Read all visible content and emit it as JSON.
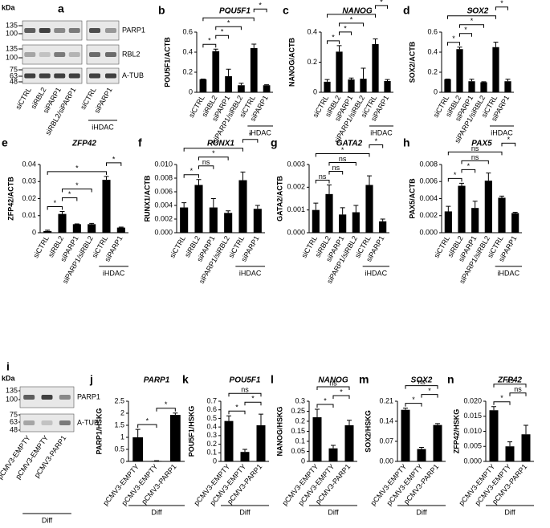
{
  "blots": [
    {
      "panel": "a",
      "unit": "kDa",
      "markers": [
        135,
        100,
        135,
        100,
        75,
        63,
        48
      ],
      "proteins": [
        "PARP1",
        "RBL2",
        "A-TUB"
      ],
      "lanes": [
        "siCTRL",
        "siRBL2",
        "siPARP1",
        "siRBL2/siPARP1",
        "siCTRL",
        "siPARP1"
      ],
      "group": {
        "label": "iHDAC",
        "between": [
          4,
          5
        ]
      }
    },
    {
      "panel": "i",
      "unit": "kDa",
      "markers": [
        135,
        100,
        75,
        63,
        48
      ],
      "proteins": [
        "PARP1",
        "A-TUB"
      ],
      "lanes": [
        "pCMV3-EMPTY",
        "pCMV3-EMPTY",
        "pCMV3-PARP1"
      ],
      "group": {
        "label": "Diff",
        "between": [
          0,
          2
        ]
      }
    }
  ],
  "chart_data": [
    {
      "type": "bar",
      "panel": "b",
      "title": "POU5F1",
      "ylabel": "POU5F1/ACTB",
      "color": "#000000",
      "categories": [
        "siCTRL",
        "siRBL2",
        "siPARP1",
        "siPARP1/siRBL2",
        "siCTRL",
        "siPARP1"
      ],
      "values": [
        0.13,
        0.41,
        0.16,
        0.07,
        0.44,
        0.07
      ],
      "errors": [
        0.002,
        0.02,
        0.07,
        0.02,
        0.04,
        0.005
      ],
      "ylim": [
        0,
        0.6
      ],
      "yticks": [
        0,
        0.2,
        0.4,
        0.6
      ],
      "significance": [
        {
          "between": [
            0,
            1
          ],
          "label": "*"
        },
        {
          "between": [
            1,
            2
          ],
          "label": "*"
        },
        {
          "between": [
            1,
            3
          ],
          "label": "*"
        },
        {
          "between": [
            0,
            4
          ],
          "label": "*"
        },
        {
          "between": [
            4,
            5
          ],
          "label": "*"
        }
      ],
      "group": {
        "label": "iHDAC",
        "between": [
          4,
          5
        ]
      }
    },
    {
      "type": "bar",
      "panel": "c",
      "title": "NANOG",
      "ylabel": "NANOG/ACTB",
      "color": "#000000",
      "categories": [
        "siCTRL",
        "siRBL2",
        "siPARP1",
        "siPARP1/siRBL2",
        "siCTRL",
        "siPARP1"
      ],
      "values": [
        0.07,
        0.27,
        0.085,
        0.09,
        0.32,
        0.075
      ],
      "errors": [
        0.015,
        0.04,
        0.01,
        0.07,
        0.035,
        0.01
      ],
      "ylim": [
        0,
        0.4
      ],
      "yticks": [
        0,
        0.2,
        0.4
      ],
      "significance": [
        {
          "between": [
            0,
            1
          ],
          "label": "*"
        },
        {
          "between": [
            1,
            2
          ],
          "label": "*"
        },
        {
          "between": [
            1,
            3
          ],
          "label": "*"
        },
        {
          "between": [
            0,
            4
          ],
          "label": "*"
        },
        {
          "between": [
            4,
            5
          ],
          "label": "*"
        }
      ],
      "group": {
        "label": "iHDAC",
        "between": [
          4,
          5
        ]
      }
    },
    {
      "type": "bar",
      "panel": "d",
      "title": "SOX2",
      "ylabel": "SOX2/ACTB",
      "color": "#000000",
      "categories": [
        "siCTRL",
        "siRBL2",
        "siPARP1",
        "siPARP1/siRBL2",
        "siCTRL",
        "siPARP1"
      ],
      "values": [
        0.13,
        0.43,
        0.11,
        0.1,
        0.45,
        0.11
      ],
      "errors": [
        0.002,
        0.02,
        0.02,
        0.005,
        0.05,
        0.02
      ],
      "ylim": [
        0,
        0.6
      ],
      "yticks": [
        0,
        0.2,
        0.4,
        0.6
      ],
      "significance": [
        {
          "between": [
            0,
            1
          ],
          "label": "*"
        },
        {
          "between": [
            1,
            2
          ],
          "label": "*"
        },
        {
          "between": [
            1,
            3
          ],
          "label": "*"
        },
        {
          "between": [
            0,
            4
          ],
          "label": "*"
        },
        {
          "between": [
            4,
            5
          ],
          "label": "*"
        }
      ],
      "group": {
        "label": "iHDAC",
        "between": [
          4,
          5
        ]
      }
    },
    {
      "type": "bar",
      "panel": "e",
      "title": "ZFP42",
      "ylabel": "ZFP42/ACTB",
      "color": "#000000",
      "categories": [
        "siCTRL",
        "siRBL2",
        "siPARP1",
        "siPARP1/siRBL2",
        "siCTRL",
        "siPARP1"
      ],
      "values": [
        0.001,
        0.011,
        0.005,
        0.005,
        0.031,
        0.003
      ],
      "errors": [
        0.0005,
        0.0015,
        0.0002,
        0.0005,
        0.002,
        0.0003
      ],
      "ylim": [
        0,
        0.04
      ],
      "yticks": [
        0,
        0.01,
        0.02,
        0.03,
        0.04
      ],
      "significance": [
        {
          "between": [
            0,
            1
          ],
          "label": "*"
        },
        {
          "between": [
            1,
            2
          ],
          "label": "*"
        },
        {
          "between": [
            1,
            3
          ],
          "label": "*"
        },
        {
          "between": [
            0,
            4
          ],
          "label": "*"
        },
        {
          "between": [
            4,
            5
          ],
          "label": "*"
        }
      ],
      "group": {
        "label": "iHDAC",
        "between": [
          4,
          5
        ]
      }
    },
    {
      "type": "bar",
      "panel": "f",
      "title": "RUNX1",
      "ylabel": "RUNX1/ACTB",
      "color": "#000000",
      "categories": [
        "siCTRL",
        "siRBL2",
        "siPARP1",
        "siPARP1/siRBL2",
        "siCTRL",
        "siPARP1"
      ],
      "values": [
        0.0037,
        0.007,
        0.0037,
        0.0029,
        0.0077,
        0.0035
      ],
      "errors": [
        0.0007,
        0.0008,
        0.0013,
        0.0003,
        0.0012,
        0.0005
      ],
      "ylim": [
        0,
        0.01
      ],
      "yticks": [
        {
          "value": 0,
          "label": "0.000"
        },
        {
          "value": 0.002,
          "label": "0.002"
        },
        {
          "value": 0.004,
          "label": "0.004"
        },
        {
          "value": 0.006,
          "label": "0.006"
        },
        {
          "value": 0.008,
          "label": "0.008"
        },
        {
          "value": 0.01,
          "label": "0.010"
        }
      ],
      "significance": [
        {
          "between": [
            0,
            1
          ],
          "label": "*"
        },
        {
          "between": [
            1,
            2
          ],
          "label": "ns"
        },
        {
          "between": [
            1,
            3
          ],
          "label": "*"
        },
        {
          "between": [
            0,
            4
          ],
          "label": "*"
        },
        {
          "between": [
            4,
            5
          ],
          "label": "*"
        }
      ],
      "group": {
        "label": "iHDAC",
        "between": [
          4,
          5
        ]
      }
    },
    {
      "type": "bar",
      "panel": "g",
      "title": "GATA2",
      "ylabel": "GATA2/ACTB",
      "color": "#000000",
      "categories": [
        "siCTRL",
        "siRBL2",
        "siPARP1",
        "siPARP1/siRBL2",
        "siCTRL",
        "siPARP1"
      ],
      "values": [
        0.001,
        0.0017,
        0.0008,
        0.0009,
        0.0021,
        0.0005
      ],
      "errors": [
        0.0003,
        0.0004,
        0.0003,
        0.0003,
        0.0004,
        0.0001
      ],
      "ylim": [
        0,
        0.003
      ],
      "yticks": [
        {
          "value": 0,
          "label": "0.000"
        },
        {
          "value": 0.001,
          "label": "0.001"
        },
        {
          "value": 0.002,
          "label": "0.002"
        },
        {
          "value": 0.003,
          "label": "0.003"
        }
      ],
      "significance": [
        {
          "between": [
            0,
            1
          ],
          "label": "ns"
        },
        {
          "between": [
            1,
            2
          ],
          "label": "ns"
        },
        {
          "between": [
            1,
            3
          ],
          "label": "ns"
        },
        {
          "between": [
            0,
            4
          ],
          "label": "*"
        },
        {
          "between": [
            4,
            5
          ],
          "label": "*"
        }
      ],
      "group": {
        "label": "iHDAC",
        "between": [
          4,
          5
        ]
      }
    },
    {
      "type": "bar",
      "panel": "h",
      "title": "PAX5",
      "ylabel": "PAX5/ACTB",
      "color": "#000000",
      "categories": [
        "siCTRL",
        "siRBL2",
        "siPARP1",
        "siPARP1/siRBL2",
        "siCTRL",
        "siPARP1"
      ],
      "values": [
        0.0025,
        0.0055,
        0.0029,
        0.0061,
        0.0041,
        0.0023
      ],
      "errors": [
        0.0006,
        0.0003,
        0.0008,
        0.0009,
        0.0002,
        0.0001
      ],
      "ylim": [
        0,
        0.008
      ],
      "yticks": [
        {
          "value": 0,
          "label": "0.000"
        },
        {
          "value": 0.002,
          "label": "0.002"
        },
        {
          "value": 0.004,
          "label": "0.004"
        },
        {
          "value": 0.006,
          "label": "0.006"
        },
        {
          "value": 0.008,
          "label": "0.008"
        }
      ],
      "significance": [
        {
          "between": [
            0,
            1
          ],
          "label": "*"
        },
        {
          "between": [
            1,
            2
          ],
          "label": "*"
        },
        {
          "between": [
            1,
            3
          ],
          "label": "ns"
        },
        {
          "between": [
            0,
            4
          ],
          "label": "ns"
        },
        {
          "between": [
            4,
            5
          ],
          "label": "*"
        }
      ],
      "group": {
        "label": "iHDAC",
        "between": [
          4,
          5
        ]
      }
    },
    {
      "type": "bar",
      "panel": "j",
      "title": "PARP1",
      "ylabel": "PARP1/HSKG",
      "color": "#000000",
      "categories": [
        "pCMV3-EMPTY",
        "pCMV3-EMPTY",
        "pCMV3-PARP1"
      ],
      "values": [
        1.0,
        0.02,
        1.93
      ],
      "errors": [
        0.33,
        0.01,
        0.08
      ],
      "ylim": [
        0,
        2.5
      ],
      "yticks": [
        0,
        0.5,
        1,
        1.5,
        2,
        2.5
      ],
      "significance": [
        {
          "between": [
            0,
            1
          ],
          "label": "*"
        },
        {
          "between": [
            1,
            2
          ],
          "label": "*"
        }
      ],
      "group": {
        "label": "Diff",
        "between": [
          0,
          2
        ]
      }
    },
    {
      "type": "bar",
      "panel": "k",
      "title": "POU5F1",
      "ylabel": "POU5F1/HSKG",
      "color": "#000000",
      "categories": [
        "pCMV3-EMPTY",
        "pCMV3-EMPTY",
        "pCMV3-PARP1"
      ],
      "values": [
        0.47,
        0.11,
        0.42
      ],
      "errors": [
        0.06,
        0.03,
        0.13
      ],
      "ylim": [
        0,
        0.7
      ],
      "yticks": [
        0,
        0.1,
        0.2,
        0.3,
        0.4,
        0.5,
        0.6,
        0.7
      ],
      "significance": [
        {
          "between": [
            0,
            1
          ],
          "label": "*"
        },
        {
          "between": [
            1,
            2
          ],
          "label": "*"
        },
        {
          "between": [
            0,
            2
          ],
          "label": "ns"
        }
      ],
      "group": {
        "label": "Diff",
        "between": [
          0,
          2
        ]
      }
    },
    {
      "type": "bar",
      "panel": "l",
      "title": "NANOG",
      "ylabel": "NANOG/HSKG",
      "color": "#000000",
      "categories": [
        "pCMV3-EMPTY",
        "pCMV3-EMPTY",
        "pCMV3-PARP1"
      ],
      "values": [
        0.22,
        0.065,
        0.18
      ],
      "errors": [
        0.04,
        0.015,
        0.025
      ],
      "ylim": [
        0,
        0.3
      ],
      "yticks": [
        0,
        0.05,
        0.1,
        0.15,
        0.2,
        0.25,
        0.3
      ],
      "significance": [
        {
          "between": [
            0,
            1
          ],
          "label": "*"
        },
        {
          "between": [
            1,
            2
          ],
          "label": "*"
        },
        {
          "between": [
            0,
            2
          ],
          "label": "ns"
        }
      ],
      "group": {
        "label": "Diff",
        "between": [
          0,
          2
        ]
      }
    },
    {
      "type": "bar",
      "panel": "m",
      "title": "SOX2",
      "ylabel": "SOX2/HSKG",
      "color": "#000000",
      "categories": [
        "pCMV3-EMPTY",
        "pCMV3-EMPTY",
        "pCMV3-PARP1"
      ],
      "values": [
        0.18,
        0.043,
        0.127
      ],
      "errors": [
        0.006,
        0.006,
        0.005
      ],
      "ylim": [
        0,
        0.21
      ],
      "yticks": [
        {
          "value": 0,
          "label": "0.00"
        },
        {
          "value": 0.07,
          "label": "0.07"
        },
        {
          "value": 0.14,
          "label": "0.14"
        },
        {
          "value": 0.21,
          "label": "0.21"
        }
      ],
      "significance": [
        {
          "between": [
            0,
            1
          ],
          "label": "*"
        },
        {
          "between": [
            1,
            2
          ],
          "label": "*"
        },
        {
          "between": [
            0,
            2
          ],
          "label": "ns"
        }
      ],
      "group": {
        "label": "Diff",
        "between": [
          0,
          2
        ]
      }
    },
    {
      "type": "bar",
      "panel": "n",
      "title": "ZFP42",
      "ylabel": "ZFP42/HSKG",
      "color": "#000000",
      "categories": [
        "pCMV3-EMPTY",
        "pCMV3-EMPTY",
        "pCMV3-PARP1"
      ],
      "values": [
        0.017,
        0.005,
        0.009
      ],
      "errors": [
        0.0012,
        0.0015,
        0.003
      ],
      "ylim": [
        0,
        0.02
      ],
      "yticks": [
        {
          "value": 0,
          "label": "0.000"
        },
        {
          "value": 0.005,
          "label": "0.005"
        },
        {
          "value": 0.01,
          "label": "0.010"
        },
        {
          "value": 0.015,
          "label": "0.015"
        },
        {
          "value": 0.02,
          "label": "0.020"
        }
      ],
      "significance": [
        {
          "between": [
            0,
            1
          ],
          "label": "*"
        },
        {
          "between": [
            1,
            2
          ],
          "label": "ns"
        },
        {
          "between": [
            0,
            2
          ],
          "label": "ns"
        }
      ],
      "group": {
        "label": "Diff",
        "between": [
          0,
          2
        ]
      }
    }
  ]
}
